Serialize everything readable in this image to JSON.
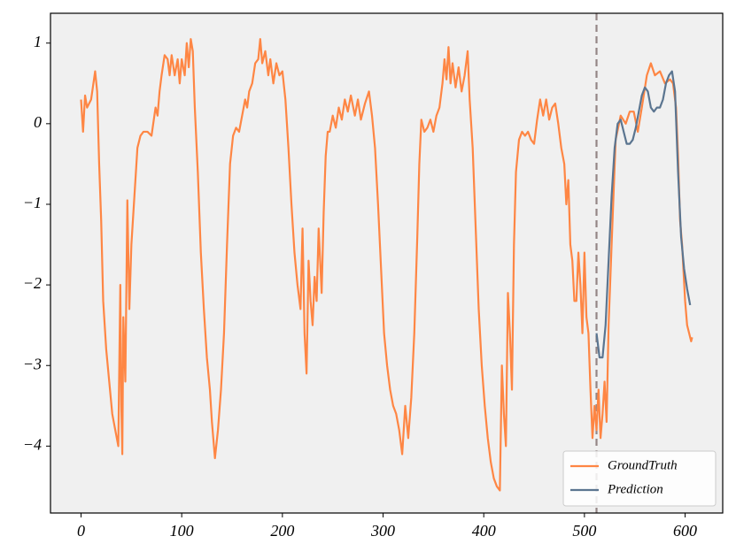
{
  "chart_data": {
    "type": "line",
    "xlim": [
      -30.35,
      637.35
    ],
    "ylim": [
      -4.83,
      1.37
    ],
    "xticks": [
      0,
      100,
      200,
      300,
      400,
      500,
      600
    ],
    "yticks": [
      {
        "value": -4,
        "label": "−4"
      },
      {
        "value": -3,
        "label": "−3"
      },
      {
        "value": -2,
        "label": "−2"
      },
      {
        "value": -1,
        "label": "−1"
      },
      0,
      1
    ],
    "vline": 512,
    "vline_color": "#948686",
    "legend": "lower right",
    "background": "#f0f0f0",
    "series": [
      {
        "name": "GroundTruth",
        "color": "#fe8644",
        "x": [
          0,
          2,
          4,
          6,
          10,
          14,
          16,
          18,
          20,
          22,
          25,
          28,
          31,
          34,
          37,
          39,
          40,
          41,
          42,
          44,
          46,
          48,
          50,
          53,
          56,
          59,
          62,
          66,
          70,
          74,
          76,
          78,
          80,
          83,
          86,
          88,
          90,
          93,
          96,
          98,
          100,
          103,
          105,
          107,
          109,
          111,
          113,
          116,
          119,
          122,
          125,
          128,
          130,
          133,
          136,
          139,
          142,
          145,
          148,
          151,
          154,
          157,
          160,
          163,
          165,
          167,
          170,
          173,
          176,
          178,
          180,
          183,
          186,
          188,
          191,
          194,
          197,
          200,
          203,
          206,
          209,
          212,
          215,
          218,
          220,
          222,
          224,
          226,
          228,
          230,
          232,
          234,
          236,
          239,
          241,
          243,
          245,
          247,
          250,
          253,
          256,
          259,
          262,
          265,
          268,
          272,
          275,
          278,
          282,
          286,
          289,
          292,
          295,
          298,
          301,
          304,
          307,
          310,
          313,
          316,
          319,
          322,
          325,
          328,
          331,
          334,
          336,
          338,
          341,
          344,
          347,
          350,
          353,
          356,
          359,
          361,
          363,
          365,
          367,
          369,
          372,
          375,
          378,
          381,
          384,
          386,
          389,
          392,
          395,
          398,
          401,
          404,
          407,
          410,
          413,
          416,
          418,
          420,
          422,
          424,
          426,
          428,
          430,
          432,
          435,
          438,
          441,
          444,
          447,
          450,
          453,
          456,
          459,
          462,
          465,
          468,
          471,
          474,
          477,
          480,
          482,
          484,
          486,
          488,
          490,
          492,
          494,
          496,
          498,
          500,
          502,
          504,
          506,
          508,
          510,
          512,
          514,
          516,
          518,
          520,
          522,
          524,
          527,
          531,
          536,
          541,
          545,
          549,
          553,
          557,
          562,
          566,
          570,
          575,
          580,
          585,
          588,
          591,
          593,
          595,
          597,
          600,
          602,
          604,
          606,
          607
        ],
        "values": [
          0.3,
          -0.1,
          0.35,
          0.2,
          0.3,
          0.65,
          0.4,
          -0.5,
          -1.2,
          -2.2,
          -2.8,
          -3.2,
          -3.6,
          -3.8,
          -4.0,
          -2.0,
          -3.5,
          -4.1,
          -2.4,
          -3.2,
          -0.95,
          -2.3,
          -1.5,
          -0.9,
          -0.3,
          -0.15,
          -0.1,
          -0.1,
          -0.15,
          0.2,
          0.1,
          0.4,
          0.6,
          0.85,
          0.8,
          0.6,
          0.85,
          0.6,
          0.8,
          0.5,
          0.8,
          0.6,
          1.0,
          0.7,
          1.05,
          0.9,
          0.2,
          -0.6,
          -1.6,
          -2.3,
          -2.9,
          -3.3,
          -3.7,
          -4.15,
          -3.8,
          -3.3,
          -2.6,
          -1.5,
          -0.5,
          -0.15,
          -0.05,
          -0.1,
          0.1,
          0.3,
          0.2,
          0.4,
          0.5,
          0.75,
          0.8,
          1.05,
          0.75,
          0.9,
          0.6,
          0.8,
          0.5,
          0.75,
          0.6,
          0.65,
          0.3,
          -0.3,
          -1.0,
          -1.6,
          -2.0,
          -2.3,
          -1.3,
          -2.6,
          -3.1,
          -1.7,
          -2.2,
          -2.5,
          -1.9,
          -2.2,
          -1.3,
          -2.1,
          -1.1,
          -0.4,
          -0.1,
          -0.1,
          0.1,
          -0.05,
          0.2,
          0.05,
          0.3,
          0.15,
          0.35,
          0.1,
          0.3,
          0.05,
          0.25,
          0.4,
          0.1,
          -0.3,
          -1.0,
          -1.8,
          -2.6,
          -3.0,
          -3.3,
          -3.5,
          -3.6,
          -3.8,
          -4.1,
          -3.5,
          -3.9,
          -3.4,
          -2.6,
          -1.4,
          -0.5,
          0.05,
          -0.1,
          -0.05,
          0.05,
          -0.1,
          0.1,
          0.2,
          0.5,
          0.8,
          0.55,
          0.95,
          0.5,
          0.75,
          0.45,
          0.7,
          0.4,
          0.6,
          0.9,
          0.3,
          -0.3,
          -1.3,
          -2.3,
          -3.0,
          -3.5,
          -3.9,
          -4.2,
          -4.4,
          -4.5,
          -4.55,
          -3.0,
          -3.6,
          -4.0,
          -2.1,
          -2.6,
          -3.3,
          -1.5,
          -0.6,
          -0.2,
          -0.1,
          -0.15,
          -0.1,
          -0.2,
          -0.25,
          0.05,
          0.3,
          0.1,
          0.3,
          0.05,
          0.2,
          0.25,
          0.0,
          -0.3,
          -0.5,
          -1.0,
          -0.7,
          -1.5,
          -1.7,
          -2.2,
          -2.2,
          -1.6,
          -2.0,
          -2.6,
          -1.6,
          -2.4,
          -2.6,
          -3.3,
          -3.9,
          -3.5,
          -3.8,
          -3.3,
          -3.9,
          -3.6,
          -3.2,
          -3.7,
          -2.5,
          -1.5,
          -0.2,
          0.1,
          0.0,
          0.15,
          0.15,
          -0.1,
          0.2,
          0.6,
          0.75,
          0.6,
          0.65,
          0.5,
          0.55,
          0.5,
          0.2,
          -0.4,
          -1.2,
          -1.5,
          -2.2,
          -2.5,
          -2.6,
          -2.7,
          -2.65
        ]
      },
      {
        "name": "Prediction",
        "color": "#5b7590",
        "x": [
          512,
          515,
          518,
          521,
          524,
          527,
          530,
          533,
          536,
          539,
          542,
          545,
          548,
          551,
          554,
          557,
          560,
          563,
          566,
          569,
          572,
          575,
          578,
          581,
          584,
          587,
          590,
          593,
          596,
          599,
          602,
          605
        ],
        "values": [
          -2.6,
          -2.9,
          -2.9,
          -2.5,
          -1.7,
          -0.9,
          -0.3,
          0.0,
          0.05,
          -0.1,
          -0.25,
          -0.25,
          -0.2,
          -0.05,
          0.15,
          0.35,
          0.45,
          0.4,
          0.2,
          0.15,
          0.2,
          0.2,
          0.3,
          0.5,
          0.6,
          0.65,
          0.4,
          -0.6,
          -1.4,
          -1.8,
          -2.05,
          -2.25
        ]
      }
    ]
  }
}
